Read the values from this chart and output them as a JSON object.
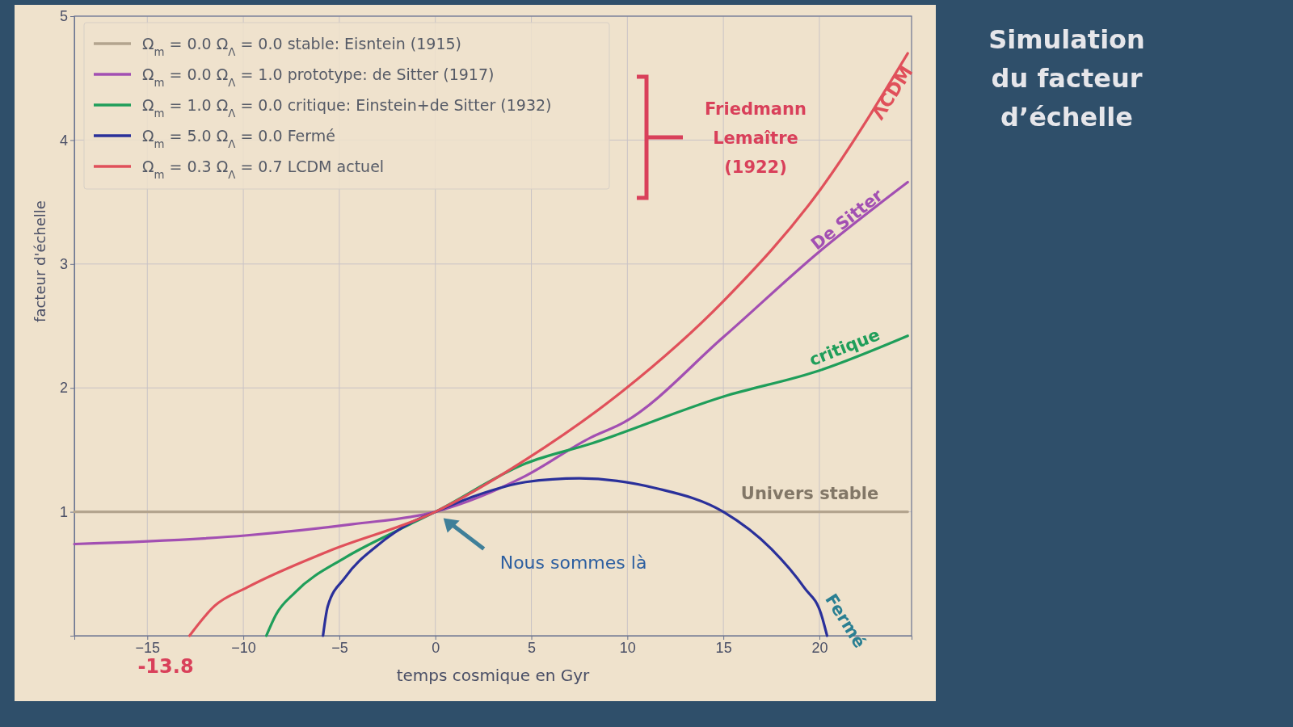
{
  "chart_data": {
    "type": "line",
    "title": "Simulation du facteur d’échelle",
    "xlabel": "temps cosmique en Gyr",
    "ylabel": "facteur d'échelle",
    "xlim": [
      -18.8,
      24.8
    ],
    "ylim": [
      0,
      5
    ],
    "xticks": [
      -15,
      -10,
      -5,
      0,
      5,
      10,
      15,
      20
    ],
    "yticks": [
      1,
      2,
      3,
      4,
      5
    ],
    "grid": true,
    "legend": "top left",
    "line_style": "solid",
    "marker": "none",
    "series": [
      {
        "name": "Ω$_{m}$ = 0.0 Ω$_{Λ}$ =  0.0 stable: Eisntein (1915)",
        "color": "#b3a48e",
        "x": [
          -18.8,
          24.6
        ],
        "values": [
          1,
          1
        ]
      },
      {
        "name": "Ω$_{m}$ = 0.0 Ω$_{Λ}$ =  1.0 prototype: de Sitter (1917)",
        "color": "#a24fb2",
        "x": [
          -18.8,
          -9.8,
          -4.3,
          0,
          4.7,
          8.1,
          9.8,
          15,
          20,
          24.6
        ],
        "values": [
          0.74,
          0.81,
          0.9,
          1,
          1.29,
          1.6,
          1.72,
          2.41,
          3.1,
          3.66
        ]
      },
      {
        "name": "Ω$_{m}$ = 1.0 Ω$_{Λ}$ =  0.0 critique: Einstein+de Sitter (1932)",
        "color": "#1f9e5a",
        "x": [
          -8.8,
          -8.3,
          -7.3,
          -4.7,
          -2.1,
          0,
          4.7,
          8.1,
          15,
          20,
          24.6
        ],
        "values": [
          0,
          0.17,
          0.35,
          0.63,
          0.84,
          1,
          1.39,
          1.55,
          1.93,
          2.14,
          2.42
        ]
      },
      {
        "name": "Ω$_{m}$ = 5.0 Ω$_{Λ}$ =  0.0 Fermé",
        "color": "#2a309a",
        "x": [
          -5.85,
          -5.6,
          -4.7,
          -3.0,
          -1.3,
          0,
          2.1,
          4.7,
          7.5,
          11.5,
          15,
          17.5,
          19.2,
          20.1,
          20.4
        ],
        "values": [
          0,
          0.24,
          0.47,
          0.73,
          0.91,
          1,
          1.13,
          1.24,
          1.27,
          1.19,
          1.0,
          0.7,
          0.39,
          0.17,
          0
        ]
      },
      {
        "name": "Ω$_{m}$ = 0.3 Ω$_{Λ}$ =  0.7 LCDM actuel",
        "color": "#e0505a",
        "x": [
          -12.8,
          -11.5,
          -9.8,
          -5.6,
          0,
          4.7,
          9.8,
          15,
          20,
          24.6
        ],
        "values": [
          0,
          0.24,
          0.39,
          0.68,
          1,
          1.42,
          1.98,
          2.7,
          3.59,
          4.7
        ]
      }
    ],
    "annotations": [
      {
        "text": "ΛCDM",
        "x": 23,
        "y": 4.25
      },
      {
        "text": "De Sitter",
        "x": 21.2,
        "y": 3.24
      },
      {
        "text": "critique",
        "x": 21.2,
        "y": 2.2
      },
      {
        "text": "Fermé",
        "x": 19.6,
        "y": 0.3
      },
      {
        "text": "Univers stable",
        "x": 19.5,
        "y": 1
      },
      "Nous sommes là",
      "-13.8",
      "Friedmann\nLemaître\n(1922)"
    ]
  }
}
